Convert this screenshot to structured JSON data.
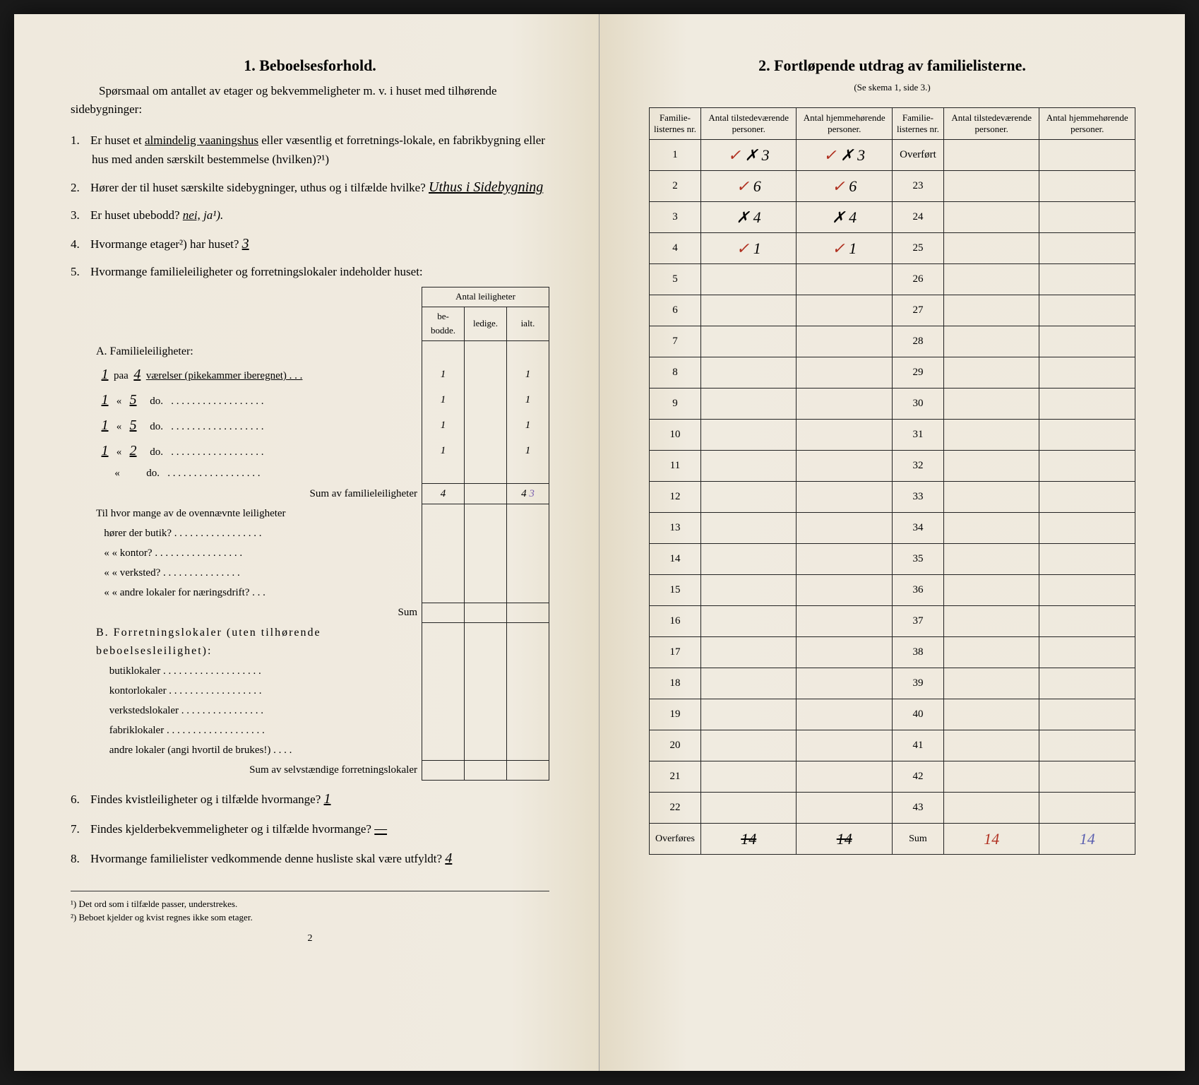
{
  "left": {
    "title": "1.   Beboelsesforhold.",
    "intro": "Spørsmaal om antallet av etager og bekvemmeligheter m. v. i huset med tilhørende sidebygninger:",
    "q1_pre": "Er huset et ",
    "q1_underlined": "almindelig vaaningshus",
    "q1_post": " eller væsentlig et forretnings-lokale, en fabrikbygning eller hus med anden særskilt bestemmelse (hvilken)?¹)",
    "q2_pre": "Hører der til huset særskilte sidebygninger, uthus og i tilfælde hvilke? ",
    "q2_hand": "Uthus i Sidebygning",
    "q3_pre": "Er huset ubebodd? ",
    "q3_nei": "nei,",
    "q3_ja": " ja¹).",
    "q4_pre": "Hvormange etager²) har huset? ",
    "q4_hand": "3",
    "q5": "Hvormange familieleiligheter og forretningslokaler indeholder huset:",
    "tbl_header_group": "Antal leiligheter",
    "tbl_h1": "be-bodde.",
    "tbl_h2": "ledige.",
    "tbl_h3": "ialt.",
    "sectionA": "A. Familieleiligheter:",
    "rowA1": {
      "n": "1",
      "v": "4",
      "label": "værelser (pikekammer iberegnet) . . .",
      "c1": "1",
      "c2": "",
      "c3": "1"
    },
    "rowA2": {
      "n": "1",
      "v": "5",
      "label": "do.",
      "c1": "1",
      "c2": "",
      "c3": "1"
    },
    "rowA3": {
      "n": "1",
      "v": "5",
      "label": "do.",
      "c1": "1",
      "c2": "",
      "c3": "1"
    },
    "rowA4": {
      "n": "1",
      "v": "2",
      "label": "do.",
      "c1": "1",
      "c2": "",
      "c3": "1"
    },
    "rowA5": {
      "n": "",
      "v": "",
      "label": "do.",
      "c1": "",
      "c2": "",
      "c3": ""
    },
    "sumA_label": "Sum av familieleiligheter",
    "sumA_c1": "4",
    "sumA_c3": "4",
    "sumA_extra": "3",
    "ovenn_intro": "Til hvor mange av de ovennævnte leiligheter",
    "ovenn1": "hører der butik? . . . . . . . . . . . . . . . . .",
    "ovenn2": "«     «   kontor? . . . . . . . . . . . . . . . . .",
    "ovenn3": "«     «   verksted? . . . . . . . . . . . . . . .",
    "ovenn4": "«     «   andre lokaler for næringsdrift? . . .",
    "ovenn_sum": "Sum",
    "sectionB": "B. Forretningslokaler (uten tilhørende beboelsesleilighet):",
    "b1": "butiklokaler . . . . . . . . . . . . . . . . . . .",
    "b2": "kontorlokaler . . . . . . . . . . . . . . . . . .",
    "b3": "verkstedslokaler . . . . . . . . . . . . . . . .",
    "b4": "fabriklokaler . . . . . . . . . . . . . . . . . . .",
    "b5": "andre lokaler (angi hvortil de brukes!) . . . .",
    "sumB_label": "Sum av selvstændige forretningslokaler",
    "q6_pre": "Findes kvistleiligheter og i tilfælde hvormange? ",
    "q6_hand": "1",
    "q7_pre": "Findes kjelderbekvemmeligheter og i tilfælde hvormange? ",
    "q7_hand": "—",
    "q8_pre": "Hvormange familielister vedkommende denne husliste skal være utfyldt? ",
    "q8_hand": "4",
    "fn1": "¹) Det ord som i tilfælde passer, understrekes.",
    "fn2": "²) Beboet kjelder og kvist regnes ikke som etager.",
    "pagenum": "2"
  },
  "right": {
    "title": "2.   Fortløpende utdrag av familielisterne.",
    "subtitle": "(Se skema 1, side 3.)",
    "h1": "Familie-listernes nr.",
    "h2": "Antal tilstedeværende personer.",
    "h3": "Antal hjemmehørende personer.",
    "overfort": "Overført",
    "rows_left": [
      {
        "n": "1",
        "a": "✗ 3",
        "b": "✗ 3"
      },
      {
        "n": "2",
        "a": "6",
        "b": "6"
      },
      {
        "n": "3",
        "a": "✗ 4",
        "b": "✗ 4"
      },
      {
        "n": "4",
        "a": "1",
        "b": "1"
      },
      {
        "n": "5",
        "a": "",
        "b": ""
      },
      {
        "n": "6",
        "a": "",
        "b": ""
      },
      {
        "n": "7",
        "a": "",
        "b": ""
      },
      {
        "n": "8",
        "a": "",
        "b": ""
      },
      {
        "n": "9",
        "a": "",
        "b": ""
      },
      {
        "n": "10",
        "a": "",
        "b": ""
      },
      {
        "n": "11",
        "a": "",
        "b": ""
      },
      {
        "n": "12",
        "a": "",
        "b": ""
      },
      {
        "n": "13",
        "a": "",
        "b": ""
      },
      {
        "n": "14",
        "a": "",
        "b": ""
      },
      {
        "n": "15",
        "a": "",
        "b": ""
      },
      {
        "n": "16",
        "a": "",
        "b": ""
      },
      {
        "n": "17",
        "a": "",
        "b": ""
      },
      {
        "n": "18",
        "a": "",
        "b": ""
      },
      {
        "n": "19",
        "a": "",
        "b": ""
      },
      {
        "n": "20",
        "a": "",
        "b": ""
      },
      {
        "n": "21",
        "a": "",
        "b": ""
      },
      {
        "n": "22",
        "a": "",
        "b": ""
      }
    ],
    "rows_right_start": 23,
    "overfores": "Overføres",
    "overfores_a": "14",
    "overfores_b": "14",
    "sum_label": "Sum",
    "sum_a": "14",
    "sum_b": "14"
  }
}
